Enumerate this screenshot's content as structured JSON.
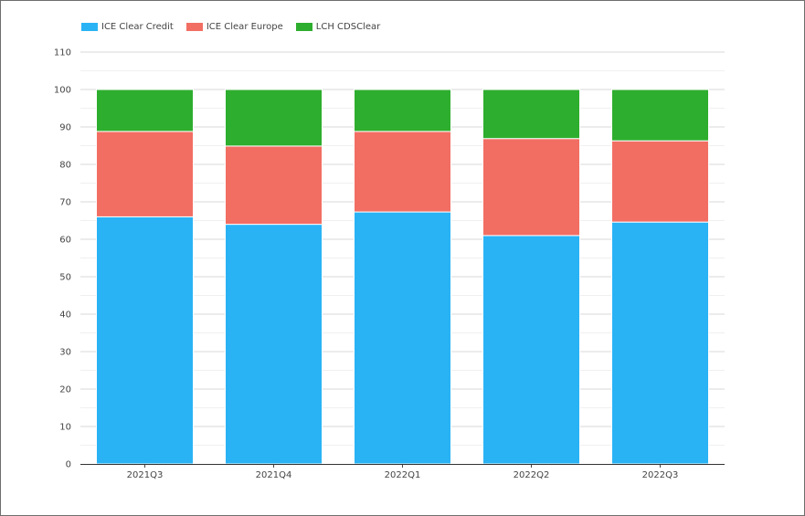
{
  "chart_data": {
    "type": "bar",
    "stacked": true,
    "title": "",
    "xlabel": "",
    "ylabel": "",
    "ylim": [
      0,
      110
    ],
    "ytick_step": 10,
    "grid": true,
    "legend_position": "top-left",
    "categories": [
      "2021Q3",
      "2021Q4",
      "2022Q1",
      "2022Q2",
      "2022Q3"
    ],
    "series": [
      {
        "name": "ICE Clear Credit",
        "color": "#29b3f5",
        "values": [
          66,
          64,
          67.3,
          61,
          64.6
        ]
      },
      {
        "name": "ICE Clear Europe",
        "color": "#f26e63",
        "values": [
          22.8,
          20.9,
          21.5,
          25.9,
          21.7
        ]
      },
      {
        "name": "LCH CDSClear",
        "color": "#2eae2e",
        "values": [
          11.2,
          15.1,
          11.2,
          13.1,
          13.7
        ]
      }
    ]
  }
}
